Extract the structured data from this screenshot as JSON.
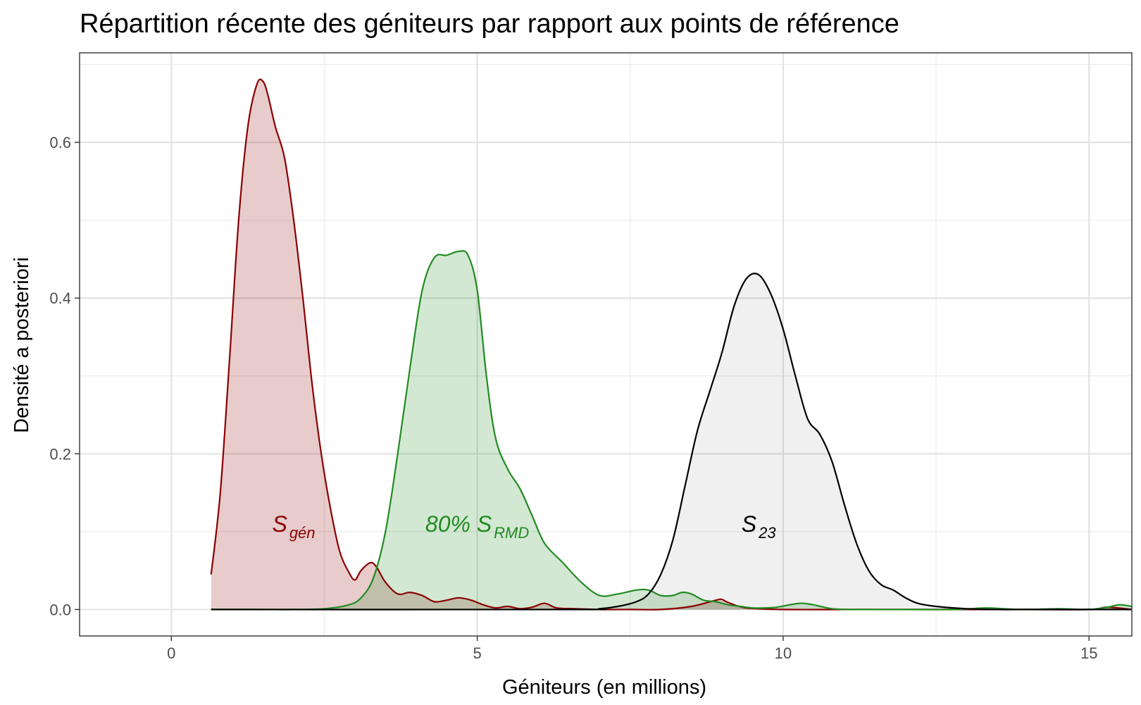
{
  "chart_data": {
    "type": "area",
    "title": "Répartition récente des géniteurs par rapport aux points de référence",
    "xlabel": "Géniteurs (en millions)",
    "ylabel": "Densité a posteriori",
    "xlim": [
      -1.5,
      15.7
    ],
    "ylim": [
      -0.034,
      0.715
    ],
    "x_ticks": [
      0,
      5,
      10,
      15
    ],
    "x_tick_labels": [
      "0",
      "5",
      "10",
      "15"
    ],
    "y_ticks": [
      0.0,
      0.2,
      0.4,
      0.6
    ],
    "y_tick_labels": [
      "0.0",
      "0.2",
      "0.4",
      "0.6"
    ],
    "grid": true,
    "legend": "none",
    "series": [
      {
        "color": "#8b0000",
        "fill": "#e8cacb",
        "x": [
          0.65,
          0.8,
          0.95,
          1.1,
          1.25,
          1.4,
          1.5,
          1.58,
          1.7,
          1.85,
          2.0,
          2.15,
          2.3,
          2.45,
          2.6,
          2.75,
          2.9,
          3.0,
          3.1,
          3.25,
          3.35,
          3.5,
          3.7,
          3.9,
          4.1,
          4.3,
          4.5,
          4.7,
          4.9,
          5.1,
          5.3,
          5.5,
          5.7,
          5.9,
          6.1,
          6.3,
          6.6,
          7.0,
          7.5,
          8.0,
          8.5,
          8.9,
          9.0,
          9.1,
          9.4,
          10.0,
          11.0,
          12.0,
          13.0,
          14.0,
          15.0,
          15.3,
          15.7
        ],
        "y": [
          0.045,
          0.15,
          0.32,
          0.5,
          0.62,
          0.675,
          0.678,
          0.66,
          0.62,
          0.58,
          0.5,
          0.4,
          0.29,
          0.2,
          0.13,
          0.075,
          0.048,
          0.038,
          0.05,
          0.06,
          0.055,
          0.035,
          0.02,
          0.022,
          0.018,
          0.01,
          0.012,
          0.015,
          0.012,
          0.006,
          0.002,
          0.004,
          0.001,
          0.003,
          0.008,
          0.002,
          0.001,
          0.0,
          0.0,
          0.0,
          0.004,
          0.012,
          0.013,
          0.009,
          0.002,
          0.0,
          0.0,
          0.0,
          0.0,
          0.0,
          0.0,
          0.003,
          0.0
        ]
      },
      {
        "color": "#228b22",
        "fill": "#d2e8d2",
        "x": [
          0.65,
          1.5,
          2.0,
          2.5,
          2.9,
          3.1,
          3.3,
          3.5,
          3.7,
          3.9,
          4.1,
          4.3,
          4.5,
          4.7,
          4.85,
          5.0,
          5.15,
          5.3,
          5.5,
          5.7,
          5.9,
          6.1,
          6.4,
          6.7,
          7.0,
          7.3,
          7.6,
          7.8,
          8.0,
          8.2,
          8.35,
          8.5,
          8.7,
          8.9,
          9.1,
          9.3,
          9.5,
          9.7,
          9.9,
          10.1,
          10.3,
          10.5,
          10.8,
          11.2,
          12.0,
          12.8,
          13.3,
          13.6,
          14.0,
          14.5,
          15.0,
          15.3,
          15.5,
          15.7
        ],
        "y": [
          0.0,
          0.0,
          0.0,
          0.001,
          0.006,
          0.015,
          0.04,
          0.1,
          0.2,
          0.31,
          0.41,
          0.452,
          0.455,
          0.46,
          0.455,
          0.41,
          0.3,
          0.22,
          0.18,
          0.155,
          0.12,
          0.085,
          0.06,
          0.035,
          0.018,
          0.02,
          0.025,
          0.025,
          0.018,
          0.018,
          0.022,
          0.02,
          0.012,
          0.01,
          0.006,
          0.004,
          0.002,
          0.002,
          0.003,
          0.006,
          0.008,
          0.006,
          0.001,
          0.0,
          0.0,
          0.0,
          0.002,
          0.001,
          0.0,
          0.001,
          0.0,
          0.003,
          0.006,
          0.004
        ]
      },
      {
        "color": "#000000",
        "fill": "#f0f0f0",
        "x": [
          0.65,
          6.5,
          7.0,
          7.3,
          7.6,
          7.8,
          8.0,
          8.2,
          8.4,
          8.6,
          8.8,
          9.0,
          9.2,
          9.4,
          9.6,
          9.8,
          10.0,
          10.2,
          10.4,
          10.6,
          10.8,
          11.0,
          11.2,
          11.4,
          11.6,
          11.8,
          12.0,
          12.2,
          12.5,
          13.0,
          13.5,
          14.0,
          14.5,
          15.0,
          15.7
        ],
        "y": [
          0.0,
          0.0,
          0.001,
          0.004,
          0.01,
          0.02,
          0.045,
          0.09,
          0.16,
          0.23,
          0.28,
          0.33,
          0.39,
          0.425,
          0.43,
          0.405,
          0.36,
          0.3,
          0.245,
          0.225,
          0.19,
          0.135,
          0.085,
          0.05,
          0.032,
          0.025,
          0.015,
          0.008,
          0.004,
          0.001,
          0.0,
          0.0,
          0.0,
          0.0,
          0.0
        ]
      }
    ],
    "annotations": [
      {
        "main": "S",
        "sub": "gén",
        "x": 2.0,
        "y": 0.1,
        "color": "#8b0000"
      },
      {
        "main": "80% S",
        "sub": "RMD",
        "x": 5.0,
        "y": 0.1,
        "color": "#228b22"
      },
      {
        "main": "S",
        "sub": "23",
        "x": 9.6,
        "y": 0.1,
        "color": "#000000"
      }
    ]
  }
}
